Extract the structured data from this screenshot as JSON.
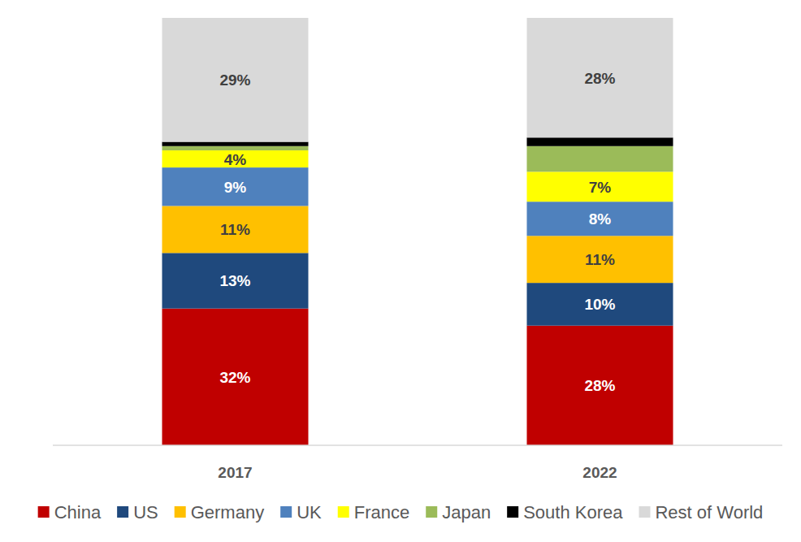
{
  "chart_data": {
    "type": "bar",
    "stacked": true,
    "data_labels": true,
    "tick_labels": "x",
    "legend": "bottom",
    "categories": [
      "2017",
      "2022"
    ],
    "ylim": [
      0,
      100
    ],
    "series": [
      {
        "name": "China",
        "color": "#c00000",
        "values": [
          32,
          28
        ],
        "value_labels": [
          "32%",
          "28%"
        ]
      },
      {
        "name": "US",
        "color": "#1f497d",
        "values": [
          13,
          10
        ],
        "value_labels": [
          "13%",
          "10%"
        ]
      },
      {
        "name": "Germany",
        "color": "#ffc000",
        "values": [
          11,
          11
        ],
        "value_labels": [
          "11%",
          "11%"
        ]
      },
      {
        "name": "UK",
        "color": "#4f81bd",
        "values": [
          9,
          8
        ],
        "value_labels": [
          "9%",
          "8%"
        ]
      },
      {
        "name": "France",
        "color": "#ffff00",
        "values": [
          4,
          7
        ],
        "value_labels": [
          "4%",
          "7%"
        ]
      },
      {
        "name": "Japan",
        "color": "#9bbb59",
        "values": [
          1,
          6
        ],
        "value_labels": [
          null,
          null
        ]
      },
      {
        "name": "South Korea",
        "color": "#000000",
        "values": [
          1,
          2
        ],
        "value_labels": [
          null,
          null
        ]
      },
      {
        "name": "Rest of World",
        "color": "#d9d9d9",
        "values": [
          29,
          28
        ],
        "value_labels": [
          "29%",
          "28%"
        ]
      }
    ]
  }
}
